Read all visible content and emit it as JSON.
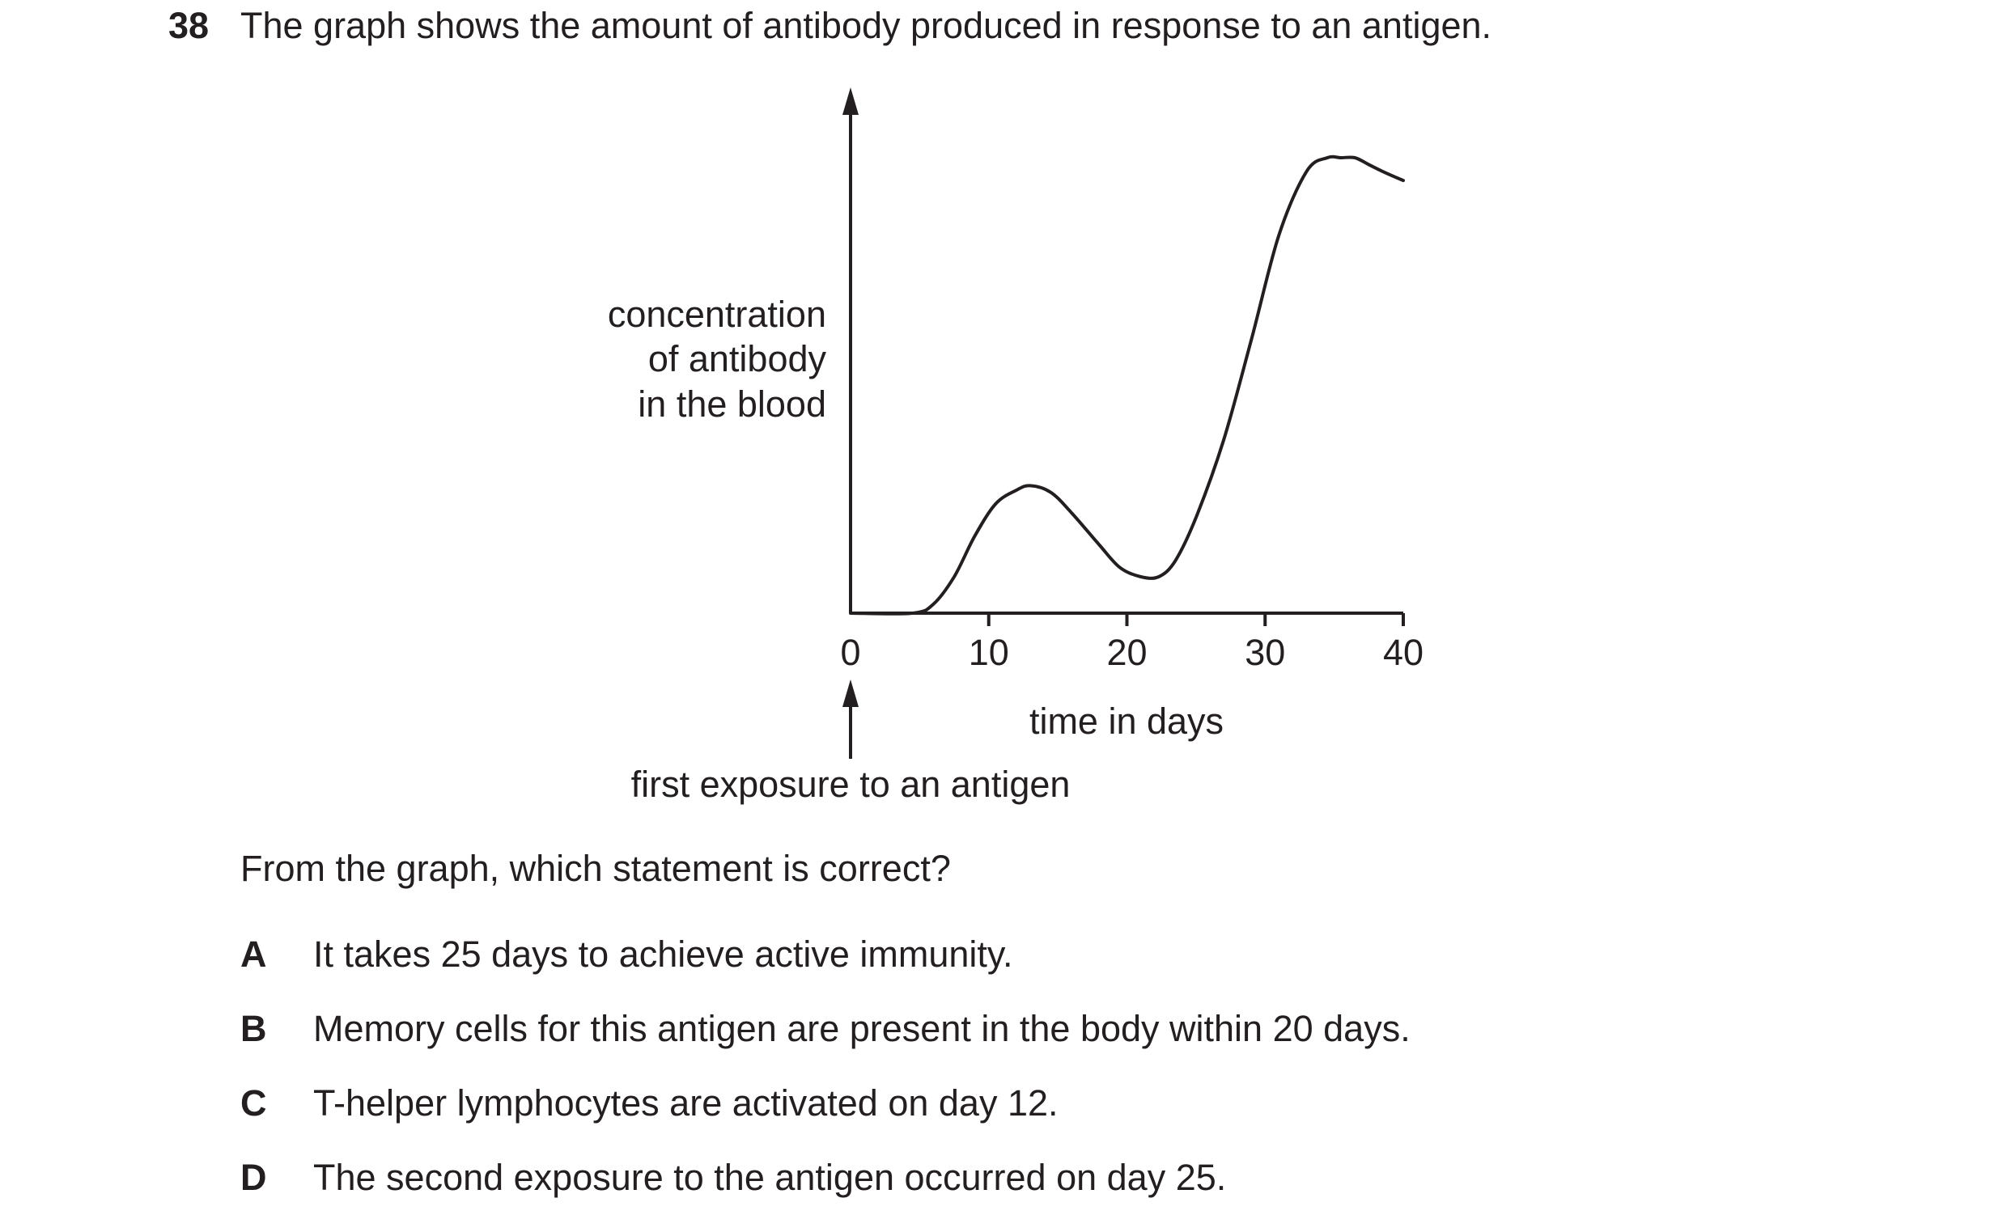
{
  "question": {
    "number": "38",
    "text": "The graph shows the amount of antibody produced in response to an antigen."
  },
  "chart_data": {
    "type": "line",
    "ylabel_lines": [
      "concentration",
      "of antibody",
      "in the blood"
    ],
    "xlabel": "time in days",
    "x_ticks": [
      "0",
      "10",
      "20",
      "30",
      "40"
    ],
    "xlim": [
      0,
      40
    ],
    "y_units": "relative (no scale)",
    "ylim": [
      0,
      100
    ],
    "annotation": "first exposure to an antigen",
    "annotation_x": 0,
    "series": [
      {
        "x": [
          0,
          4.5,
          6,
          7.5,
          9,
          10.5,
          12,
          13,
          14.5,
          16,
          18,
          19.5,
          21,
          22.3,
          23.5,
          25,
          27,
          29,
          31,
          33,
          34.5,
          35.5,
          36.5,
          37.5,
          38.5,
          40
        ],
        "y": [
          0,
          0,
          2,
          8,
          17,
          24,
          27,
          28,
          26.5,
          22,
          15,
          10,
          8,
          8,
          11.5,
          21,
          38,
          60,
          83,
          97,
          100,
          100,
          100,
          98.5,
          97,
          95
        ]
      }
    ]
  },
  "prompt": "From the graph, which statement is correct?",
  "options": [
    {
      "letter": "A",
      "text": "It takes 25 days to achieve active immunity."
    },
    {
      "letter": "B",
      "text": "Memory cells for this antigen are present in the body within 20 days."
    },
    {
      "letter": "C",
      "text": "T-helper lymphocytes are activated on day 12."
    },
    {
      "letter": "D",
      "text": "The second exposure to the antigen occurred on day 25."
    }
  ]
}
